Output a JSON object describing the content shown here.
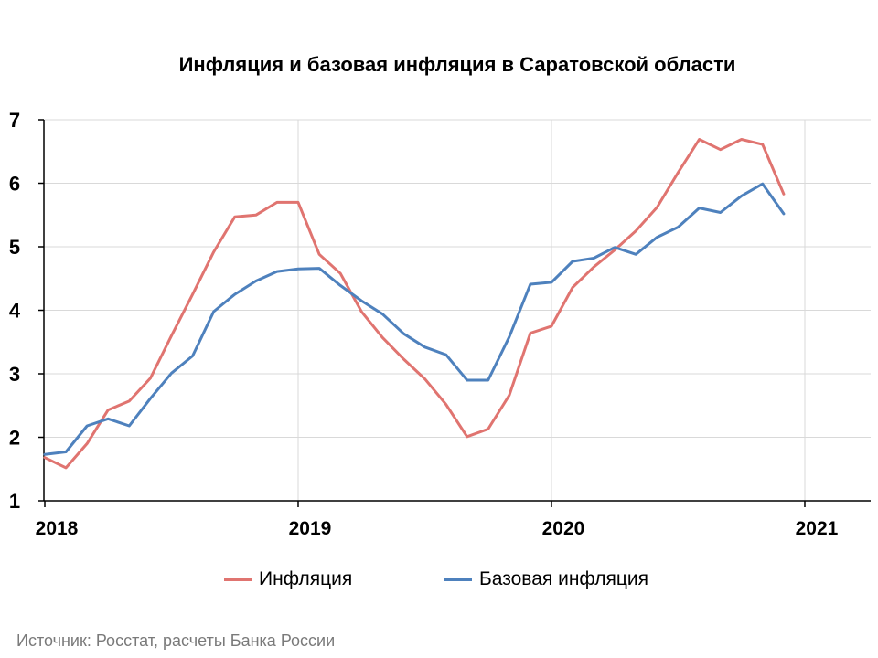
{
  "chart_data": {
    "type": "line",
    "title": "Инфляция и базовая инфляция в Саратовской области",
    "ylim": [
      1,
      7
    ],
    "yticks": [
      1,
      2,
      3,
      4,
      5,
      6,
      7
    ],
    "xlim": [
      0,
      39
    ],
    "xtick_positions": [
      0,
      12,
      24,
      36
    ],
    "xtick_labels": [
      "2018",
      "2019",
      "2020",
      "2021"
    ],
    "grid": true,
    "legend_position": "bottom",
    "series": [
      {
        "name": "Инфляция",
        "color": "#e07470",
        "values": [
          1.68,
          1.52,
          1.9,
          2.43,
          2.57,
          2.93,
          3.6,
          4.25,
          4.92,
          5.47,
          5.5,
          5.7,
          5.7,
          4.88,
          4.58,
          3.98,
          3.57,
          3.23,
          2.92,
          2.52,
          2.01,
          2.13,
          2.66,
          3.64,
          3.75,
          4.36,
          4.68,
          4.95,
          5.25,
          5.62,
          6.17,
          6.69,
          6.53,
          6.69,
          6.61,
          5.83
        ]
      },
      {
        "name": "Базовая инфляция",
        "color": "#4e81bd",
        "values": [
          1.73,
          1.77,
          2.18,
          2.29,
          2.18,
          2.61,
          3.01,
          3.28,
          3.98,
          4.25,
          4.46,
          4.61,
          4.65,
          4.66,
          4.39,
          4.15,
          3.94,
          3.63,
          3.42,
          3.3,
          2.9,
          2.9,
          3.58,
          4.41,
          4.44,
          4.77,
          4.82,
          4.99,
          4.88,
          5.15,
          5.31,
          5.61,
          5.54,
          5.8,
          5.99,
          5.52
        ]
      }
    ]
  },
  "source": "Источник: Росстат, расчеты Банка России"
}
